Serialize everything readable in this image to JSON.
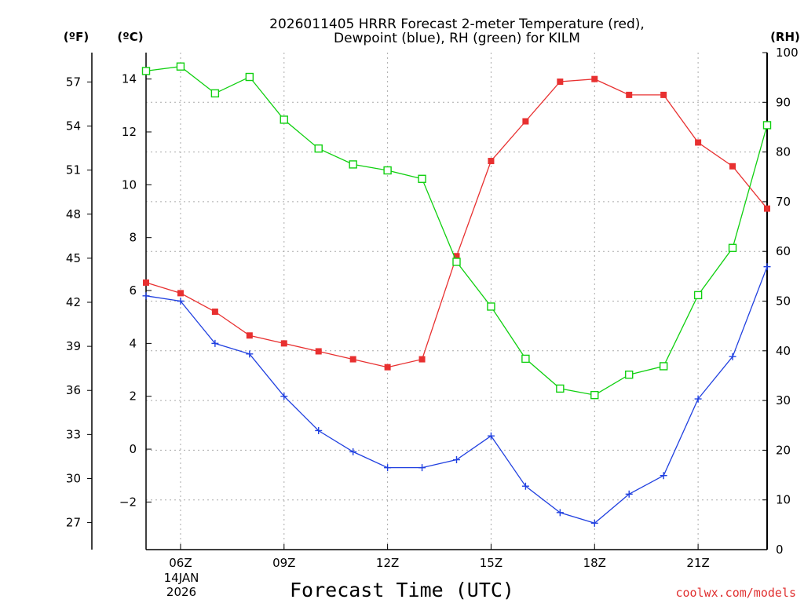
{
  "chart_data": {
    "type": "line",
    "title_line1": "2026011405 HRRR Forecast 2-meter Temperature (red),",
    "title_line2": "Dewpoint (blue), RH (green) for KILM",
    "xlabel": "Forecast Time (UTC)",
    "credit": "coolwx.com/models",
    "date_label_line1": "14JAN",
    "date_label_line2": "2026",
    "x": [
      5,
      6,
      7,
      8,
      9,
      10,
      11,
      12,
      13,
      14,
      15,
      16,
      17,
      18,
      19,
      20,
      21,
      22,
      23
    ],
    "x_ticks": [
      {
        "hour": 6,
        "label": "06Z"
      },
      {
        "hour": 9,
        "label": "09Z"
      },
      {
        "hour": 12,
        "label": "12Z"
      },
      {
        "hour": 15,
        "label": "15Z"
      },
      {
        "hour": 18,
        "label": "18Z"
      },
      {
        "hour": 21,
        "label": "21Z"
      }
    ],
    "xlim": [
      5,
      23
    ],
    "left_axis_c": {
      "unit": "(ºC)",
      "ylim": [
        -3.8,
        15.0
      ],
      "ticks": [
        -2,
        0,
        2,
        4,
        6,
        8,
        10,
        12,
        14
      ]
    },
    "left_axis_f": {
      "unit": "(ºF)",
      "ticks": [
        27,
        30,
        33,
        36,
        39,
        42,
        45,
        48,
        51,
        54,
        57
      ]
    },
    "right_axis_rh": {
      "unit": "(RH)",
      "ylim": [
        0,
        100
      ],
      "ticks": [
        0,
        10,
        20,
        30,
        40,
        50,
        60,
        70,
        80,
        90,
        100
      ]
    },
    "series": [
      {
        "name": "2-meter Temperature",
        "axis": "C",
        "color": "#e83030",
        "marker": "filled-square",
        "values": [
          6.3,
          5.9,
          5.2,
          4.3,
          4.0,
          3.7,
          3.4,
          3.1,
          3.4,
          7.3,
          10.9,
          12.4,
          13.9,
          14.0,
          13.4,
          13.4,
          11.6,
          10.7,
          9.1
        ]
      },
      {
        "name": "Dewpoint",
        "axis": "C",
        "color": "#2040e0",
        "marker": "plus",
        "values": [
          5.8,
          5.6,
          4.0,
          3.6,
          2.0,
          0.7,
          -0.1,
          -0.7,
          -0.7,
          -0.4,
          0.5,
          -1.4,
          -2.4,
          -2.8,
          -1.7,
          -1.0,
          1.9,
          3.5,
          6.9
        ]
      },
      {
        "name": "RH",
        "axis": "RH",
        "color": "#10d010",
        "marker": "open-square",
        "values": [
          96.3,
          97.2,
          91.8,
          95.1,
          86.5,
          80.7,
          77.5,
          76.3,
          74.6,
          57.9,
          48.9,
          38.4,
          32.4,
          31.1,
          35.2,
          36.9,
          51.2,
          60.7,
          85.4
        ]
      }
    ]
  }
}
